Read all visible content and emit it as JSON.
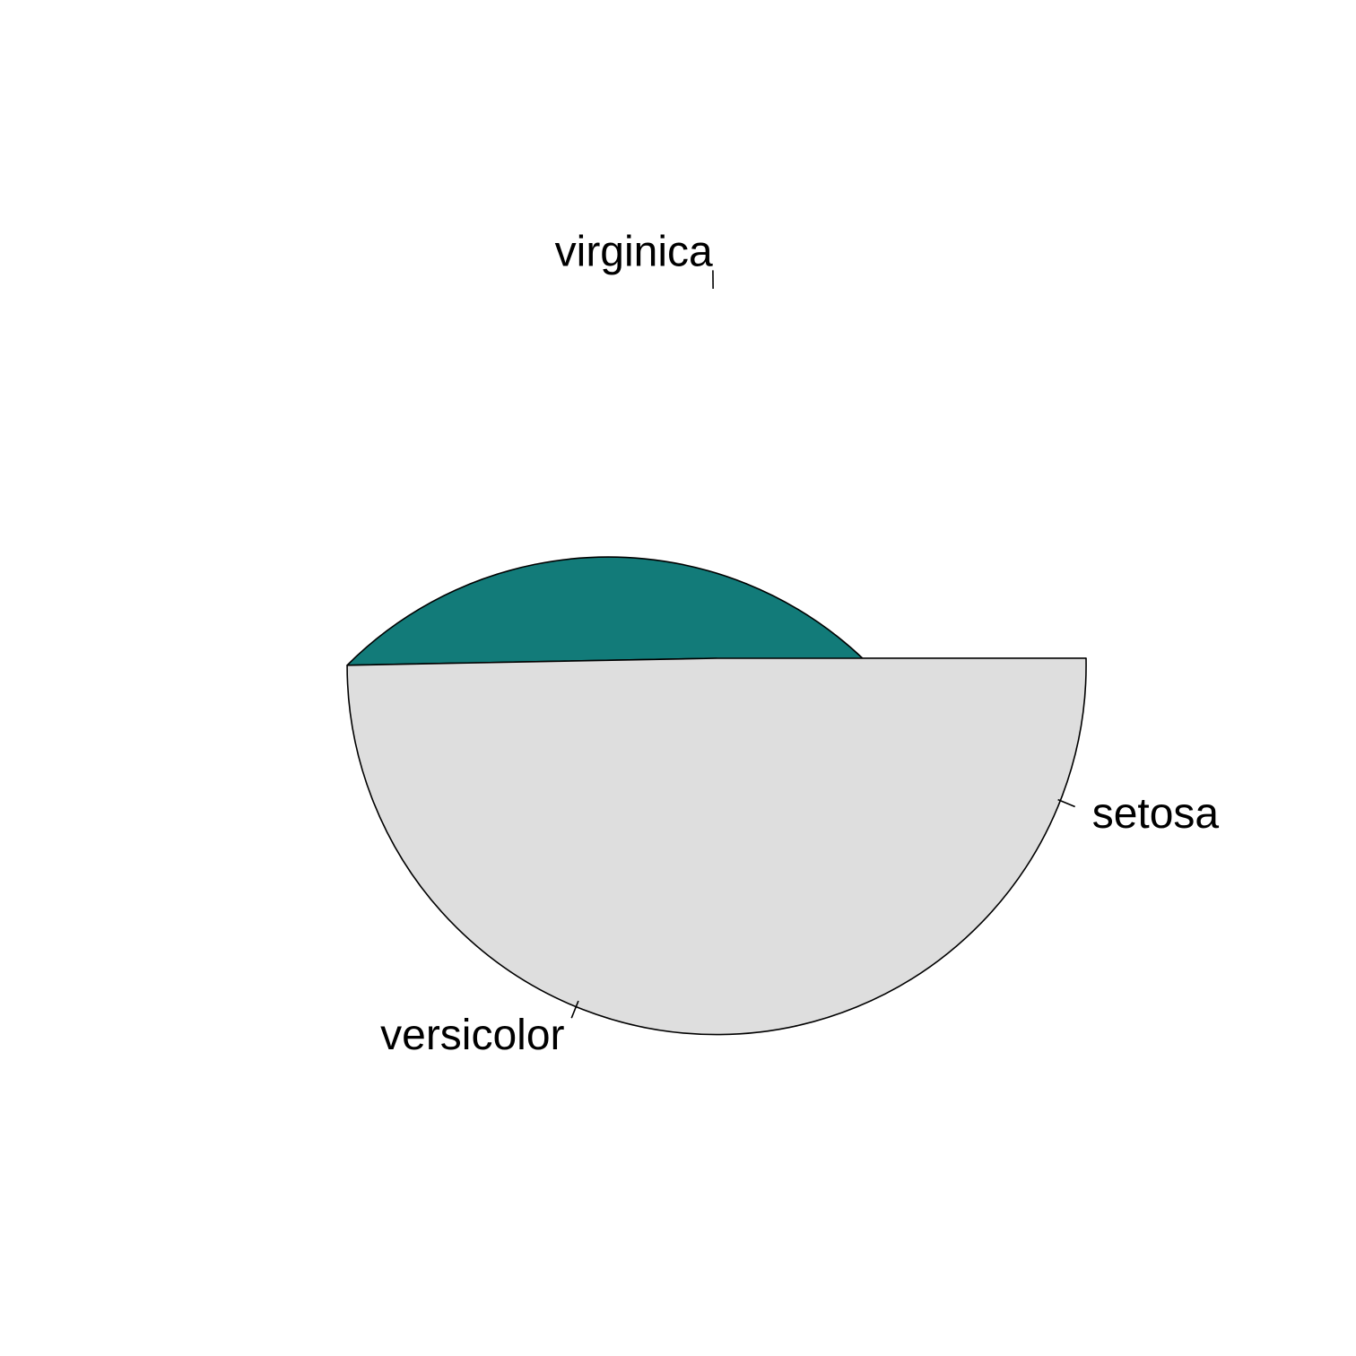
{
  "chart_data": {
    "type": "pie",
    "title": "",
    "start_angle_deg": 0,
    "direction": "counterclockwise",
    "slices": [
      {
        "label": "setosa",
        "value": 0.125,
        "color": "#F8790B"
      },
      {
        "label": "versicolor",
        "value": 0.372,
        "color": "#127B79"
      },
      {
        "label": "virginica",
        "value": 0.503,
        "color": "#DEDEDE"
      }
    ]
  }
}
